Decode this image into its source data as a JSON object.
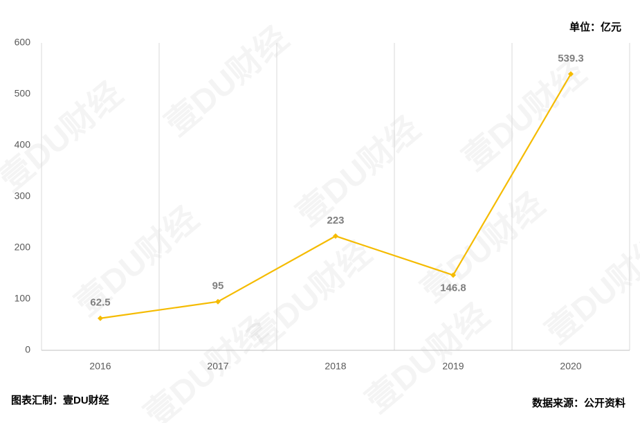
{
  "chart_data": {
    "type": "line",
    "unit_label": "单位：亿元",
    "categories": [
      "2016",
      "2017",
      "2018",
      "2019",
      "2020"
    ],
    "values": [
      62.5,
      95,
      223,
      146.8,
      539.3
    ],
    "color": "#f5bb00",
    "ylim": [
      0,
      600
    ],
    "yticks": [
      0,
      100,
      200,
      300,
      400,
      500,
      600
    ],
    "grid": true,
    "credit": "图表汇制：壹DU财经",
    "source": "数据来源：公开资料",
    "watermark": "壹DU财经"
  }
}
